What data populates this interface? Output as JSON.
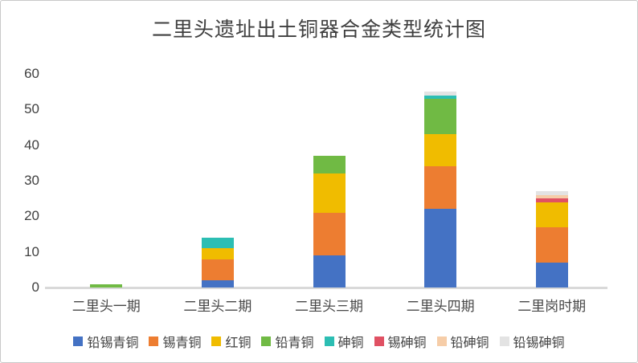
{
  "title": "二里头遗址出土铜器合金类型统计图",
  "chart_data": {
    "type": "bar",
    "stacked": true,
    "title": "二里头遗址出土铜器合金类型统计图",
    "categories": [
      "二里头一期",
      "二里头二期",
      "二里头三期",
      "二里头四期",
      "二里岗时期"
    ],
    "series": [
      {
        "name": "铅锡青铜",
        "color": "#4472c4",
        "values": [
          0,
          2,
          9,
          22,
          7
        ]
      },
      {
        "name": "锡青铜",
        "color": "#ed7d31",
        "values": [
          0,
          6,
          12,
          12,
          10
        ]
      },
      {
        "name": "红铜",
        "color": "#f0bc00",
        "values": [
          0,
          3,
          11,
          9,
          7
        ]
      },
      {
        "name": "铅青铜",
        "color": "#70ba44",
        "values": [
          1,
          0,
          5,
          10,
          0
        ]
      },
      {
        "name": "砷铜",
        "color": "#2cbeb3",
        "values": [
          0,
          3,
          0,
          1,
          0
        ]
      },
      {
        "name": "锡砷铜",
        "color": "#e05163",
        "values": [
          0,
          0,
          0,
          0,
          1
        ]
      },
      {
        "name": "铅砷铜",
        "color": "#f6cda8",
        "values": [
          0,
          0,
          0,
          0,
          1
        ]
      },
      {
        "name": "铅锡砷铜",
        "color": "#e3e3e3",
        "values": [
          0,
          0,
          0,
          1,
          1
        ]
      }
    ],
    "totals": [
      1,
      14,
      37,
      55,
      27
    ],
    "xlabel": "",
    "ylabel": "",
    "ylim": [
      0,
      60
    ],
    "y_ticks": [
      0,
      10,
      20,
      30,
      40,
      50,
      60
    ],
    "grid": false,
    "legend_position": "bottom"
  }
}
